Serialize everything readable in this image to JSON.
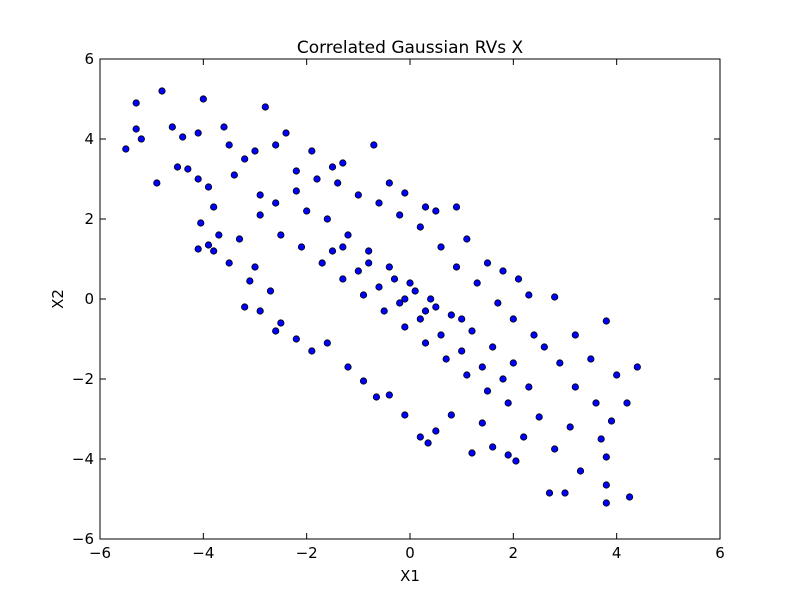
{
  "chart_data": {
    "type": "scatter",
    "title": "Correlated Gaussian RVs X",
    "xlabel": "X1",
    "ylabel": "X2",
    "xlim": [
      -6,
      6
    ],
    "ylim": [
      -6,
      6
    ],
    "xticks": [
      -6,
      -4,
      -2,
      0,
      2,
      4,
      6
    ],
    "yticks": [
      -6,
      -4,
      -2,
      0,
      2,
      4,
      6
    ],
    "xtick_labels": [
      "−6",
      "−4",
      "−2",
      "0",
      "2",
      "4",
      "6"
    ],
    "ytick_labels": [
      "−6",
      "−4",
      "−2",
      "0",
      "2",
      "4",
      "6"
    ],
    "grid": false,
    "marker_color": "#0000ff",
    "marker_edge_color": "#000000",
    "series": [
      {
        "points": [
          [
            -5.5,
            3.75
          ],
          [
            -5.3,
            4.9
          ],
          [
            -5.3,
            4.25
          ],
          [
            -5.2,
            4.0
          ],
          [
            -4.8,
            5.2
          ],
          [
            -4.9,
            2.9
          ],
          [
            -4.6,
            4.3
          ],
          [
            -4.5,
            3.3
          ],
          [
            -4.4,
            4.05
          ],
          [
            -4.3,
            3.25
          ],
          [
            -4.1,
            4.15
          ],
          [
            -4.0,
            5.0
          ],
          [
            -4.1,
            3.0
          ],
          [
            -3.9,
            2.8
          ],
          [
            -3.8,
            2.3
          ],
          [
            -3.9,
            1.35
          ],
          [
            -4.1,
            1.25
          ],
          [
            -4.05,
            1.9
          ],
          [
            -3.7,
            1.6
          ],
          [
            -3.6,
            4.3
          ],
          [
            -3.5,
            3.85
          ],
          [
            -3.4,
            3.1
          ],
          [
            -3.2,
            3.5
          ],
          [
            -3.0,
            3.7
          ],
          [
            -2.8,
            4.8
          ],
          [
            -2.6,
            3.85
          ],
          [
            -2.9,
            2.6
          ],
          [
            -3.3,
            1.5
          ],
          [
            -3.0,
            0.8
          ],
          [
            -3.1,
            0.45
          ],
          [
            -3.2,
            -0.2
          ],
          [
            -2.7,
            0.2
          ],
          [
            -2.6,
            -0.8
          ],
          [
            -3.5,
            0.9
          ],
          [
            -3.8,
            1.2
          ],
          [
            -2.4,
            4.15
          ],
          [
            -2.2,
            3.2
          ],
          [
            -1.9,
            3.7
          ],
          [
            -1.5,
            3.3
          ],
          [
            -1.3,
            3.4
          ],
          [
            -0.7,
            3.85
          ],
          [
            -0.4,
            2.9
          ],
          [
            -0.1,
            2.65
          ],
          [
            0.3,
            2.3
          ],
          [
            0.5,
            2.2
          ],
          [
            0.9,
            2.3
          ],
          [
            1.1,
            1.5
          ],
          [
            1.5,
            0.9
          ],
          [
            1.8,
            0.7
          ],
          [
            2.1,
            0.5
          ],
          [
            2.3,
            0.1
          ],
          [
            2.8,
            0.05
          ],
          [
            3.2,
            -0.9
          ],
          [
            3.8,
            -0.55
          ],
          [
            3.5,
            -1.5
          ],
          [
            4.4,
            -1.7
          ],
          [
            4.0,
            -1.9
          ],
          [
            4.2,
            -2.6
          ],
          [
            3.9,
            -3.05
          ],
          [
            3.7,
            -3.5
          ],
          [
            3.8,
            -3.95
          ],
          [
            3.8,
            -4.65
          ],
          [
            3.8,
            -5.1
          ],
          [
            4.25,
            -4.95
          ],
          [
            3.3,
            -4.3
          ],
          [
            3.0,
            -4.85
          ],
          [
            2.7,
            -4.85
          ],
          [
            2.8,
            -3.75
          ],
          [
            2.2,
            -3.45
          ],
          [
            1.9,
            -3.9
          ],
          [
            2.05,
            -4.05
          ],
          [
            1.6,
            -3.7
          ],
          [
            1.2,
            -3.85
          ],
          [
            0.5,
            -3.3
          ],
          [
            0.2,
            -3.45
          ],
          [
            0.35,
            -3.6
          ],
          [
            -0.1,
            -2.9
          ],
          [
            -0.4,
            -2.4
          ],
          [
            -0.65,
            -2.45
          ],
          [
            -0.9,
            -2.05
          ],
          [
            -1.2,
            -1.7
          ],
          [
            -1.6,
            -1.1
          ],
          [
            -1.9,
            -1.3
          ],
          [
            -2.2,
            -1.0
          ],
          [
            -2.5,
            -0.6
          ],
          [
            -2.9,
            -0.3
          ],
          [
            0.8,
            -2.9
          ],
          [
            1.4,
            -3.1
          ],
          [
            2.5,
            -2.95
          ],
          [
            3.1,
            -3.2
          ],
          [
            3.6,
            -2.6
          ],
          [
            3.2,
            -2.2
          ],
          [
            2.9,
            -1.6
          ],
          [
            2.6,
            -1.2
          ],
          [
            2.4,
            -0.9
          ],
          [
            2.0,
            -0.5
          ],
          [
            1.7,
            -0.1
          ],
          [
            1.3,
            0.4
          ],
          [
            0.9,
            0.8
          ],
          [
            0.6,
            1.3
          ],
          [
            0.2,
            1.8
          ],
          [
            -0.2,
            2.1
          ],
          [
            -0.6,
            2.4
          ],
          [
            -1.0,
            2.6
          ],
          [
            -1.4,
            2.9
          ],
          [
            -1.8,
            3.0
          ],
          [
            -2.2,
            2.7
          ],
          [
            -2.6,
            2.4
          ],
          [
            -2.9,
            2.1
          ],
          [
            -2.5,
            1.6
          ],
          [
            -2.1,
            1.3
          ],
          [
            -1.7,
            0.9
          ],
          [
            -1.3,
            0.5
          ],
          [
            -0.9,
            0.1
          ],
          [
            -0.5,
            -0.3
          ],
          [
            -0.1,
            -0.7
          ],
          [
            0.3,
            -1.1
          ],
          [
            0.7,
            -1.5
          ],
          [
            1.1,
            -1.9
          ],
          [
            1.5,
            -2.3
          ],
          [
            1.9,
            -2.6
          ],
          [
            2.3,
            -2.2
          ],
          [
            2.0,
            -1.6
          ],
          [
            1.6,
            -1.2
          ],
          [
            1.2,
            -0.8
          ],
          [
            0.8,
            -0.4
          ],
          [
            0.4,
            0.0
          ],
          [
            0.0,
            0.4
          ],
          [
            -0.4,
            0.8
          ],
          [
            -0.8,
            1.2
          ],
          [
            -1.2,
            1.6
          ],
          [
            -1.6,
            2.0
          ],
          [
            -2.0,
            2.2
          ],
          [
            -1.5,
            1.2
          ],
          [
            -1.0,
            0.7
          ],
          [
            -0.6,
            0.3
          ],
          [
            -0.2,
            -0.1
          ],
          [
            0.2,
            -0.5
          ],
          [
            0.6,
            -0.9
          ],
          [
            1.0,
            -1.3
          ],
          [
            1.4,
            -1.7
          ],
          [
            1.8,
            -2.0
          ],
          [
            1.0,
            -0.5
          ],
          [
            0.5,
            -0.2
          ],
          [
            -0.3,
            0.5
          ],
          [
            -0.8,
            0.9
          ],
          [
            -1.3,
            1.3
          ],
          [
            0.1,
            0.2
          ],
          [
            -0.1,
            0.0
          ],
          [
            0.3,
            -0.3
          ]
        ]
      }
    ]
  }
}
